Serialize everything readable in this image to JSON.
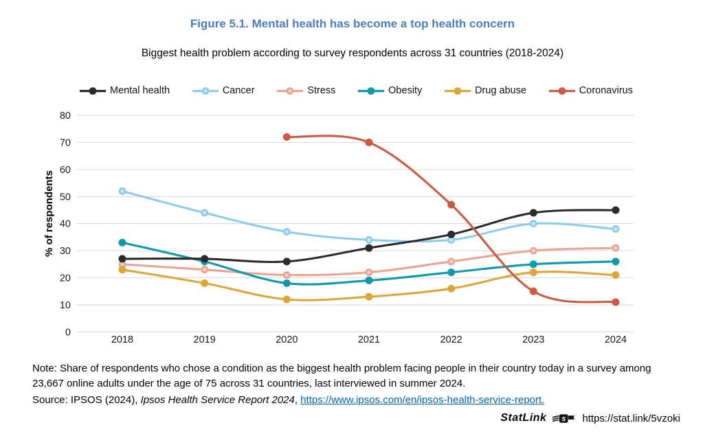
{
  "figure": {
    "title": "Figure 5.1. Mental health has become a top health concern",
    "subtitle": "Biggest health problem according to survey respondents across 31 countries (2018-2024)"
  },
  "chart_data": {
    "type": "line",
    "x": [
      2018,
      2019,
      2020,
      2021,
      2022,
      2023,
      2024
    ],
    "xlabel": "",
    "ylabel": "% of respondents",
    "ylim": [
      0,
      80
    ],
    "ytick_step": 10,
    "grid": "horizontal-only",
    "legend_position": "top",
    "series": [
      {
        "name": "Mental health",
        "color": "#2b2b2b",
        "z": 5,
        "values": [
          27,
          27,
          26,
          31,
          36,
          44,
          45
        ]
      },
      {
        "name": "Cancer",
        "color": "#8fcbeb",
        "marker_inner": "#c8e6f7",
        "z": 4,
        "values": [
          52,
          44,
          37,
          34,
          34,
          40,
          38
        ]
      },
      {
        "name": "Stress",
        "color": "#e9a493",
        "marker_inner": "#f4d0c7",
        "z": 1,
        "values": [
          25,
          23,
          21,
          22,
          26,
          30,
          31
        ]
      },
      {
        "name": "Obesity",
        "color": "#0e9aab",
        "z": 3,
        "values": [
          33,
          26,
          18,
          19,
          22,
          25,
          26
        ]
      },
      {
        "name": "Drug abuse",
        "color": "#dda63a",
        "z": 2,
        "values": [
          23,
          18,
          12,
          13,
          16,
          22,
          21
        ]
      },
      {
        "name": "Coronavirus",
        "color": "#cc5b43",
        "z": 6,
        "values": [
          null,
          null,
          72,
          70,
          47,
          15,
          11
        ]
      }
    ]
  },
  "note": {
    "line1": "Note: Share of respondents who chose a condition as the biggest health problem facing people in their country today in a survey among 23,667 online adults under the age of 75 across 31 countries, last interviewed in summer 2024.",
    "source_prefix": "Source: IPSOS (2024), ",
    "source_italic": "Ipsos Health Service Report 2024",
    "source_sep": ", ",
    "source_link": "https://www.ipsos.com/en/ipsos-health-service-report."
  },
  "statlink": {
    "label": "StatLink",
    "url": "https://stat.link/5vzoki"
  },
  "colors": {
    "title_blue": "#4a7ec2",
    "link_blue": "#0563c1",
    "grid": "#dedede",
    "tick_text": "#1a1a1a"
  }
}
